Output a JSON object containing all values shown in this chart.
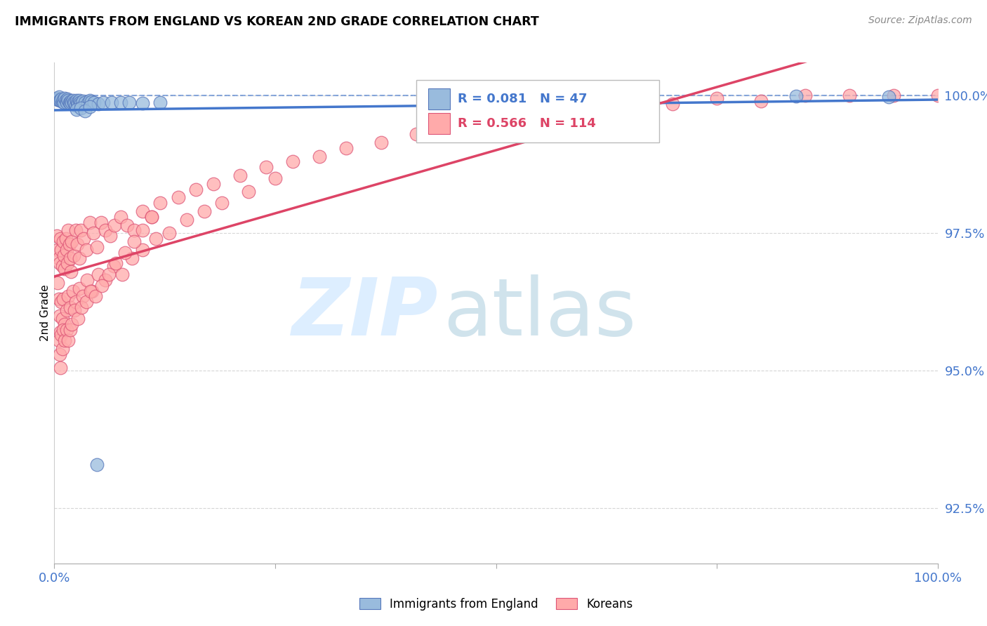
{
  "title": "IMMIGRANTS FROM ENGLAND VS KOREAN 2ND GRADE CORRELATION CHART",
  "source": "Source: ZipAtlas.com",
  "ylabel": "2nd Grade",
  "legend_label_blue": "Immigrants from England",
  "legend_label_pink": "Koreans",
  "R_blue": "0.081",
  "N_blue": "47",
  "R_pink": "0.566",
  "N_pink": "114",
  "xmin": 0.0,
  "xmax": 1.0,
  "ymin": 0.915,
  "ymax": 1.006,
  "yticks": [
    0.925,
    0.95,
    0.975,
    1.0
  ],
  "ytick_labels": [
    "92.5%",
    "95.0%",
    "97.5%",
    "100.0%"
  ],
  "color_blue": "#99BBDD",
  "color_pink": "#FFAAAA",
  "color_blue_edge": "#5577BB",
  "color_pink_edge": "#DD5577",
  "color_blue_line": "#4477CC",
  "color_pink_line": "#DD4466",
  "color_axis_text": "#4477CC",
  "blue_dots_x": [
    0.003,
    0.004,
    0.005,
    0.006,
    0.007,
    0.008,
    0.009,
    0.01,
    0.011,
    0.012,
    0.013,
    0.014,
    0.015,
    0.016,
    0.017,
    0.018,
    0.019,
    0.02,
    0.021,
    0.022,
    0.023,
    0.024,
    0.025,
    0.026,
    0.027,
    0.028,
    0.029,
    0.03,
    0.032,
    0.035,
    0.038,
    0.04,
    0.042,
    0.045,
    0.05,
    0.055,
    0.065,
    0.075,
    0.085,
    0.1,
    0.12,
    0.025,
    0.03,
    0.035,
    0.04,
    0.84,
    0.945
  ],
  "blue_dots_y": [
    0.9995,
    0.9993,
    0.9998,
    0.9992,
    0.9991,
    0.9994,
    0.9989,
    0.9993,
    0.9988,
    0.9995,
    0.9991,
    0.9988,
    0.9994,
    0.9991,
    0.9988,
    0.9986,
    0.999,
    0.9987,
    0.9991,
    0.9988,
    0.9986,
    0.9983,
    0.9991,
    0.9988,
    0.9985,
    0.9991,
    0.9988,
    0.9985,
    0.999,
    0.9988,
    0.9986,
    0.9991,
    0.9989,
    0.9987,
    0.9985,
    0.9988,
    0.9987,
    0.9988,
    0.9987,
    0.9986,
    0.9988,
    0.9975,
    0.9978,
    0.9972,
    0.998,
    0.9999,
    0.9998
  ],
  "blue_outlier_x": [
    0.048
  ],
  "blue_outlier_y": [
    0.933
  ],
  "pink_dots_x": [
    0.003,
    0.004,
    0.005,
    0.006,
    0.007,
    0.008,
    0.009,
    0.01,
    0.011,
    0.012,
    0.013,
    0.014,
    0.015,
    0.016,
    0.017,
    0.018,
    0.019,
    0.02,
    0.022,
    0.024,
    0.026,
    0.028,
    0.03,
    0.033,
    0.036,
    0.04,
    0.044,
    0.048,
    0.053,
    0.058,
    0.063,
    0.068,
    0.075,
    0.082,
    0.09,
    0.1,
    0.11,
    0.12,
    0.14,
    0.16,
    0.18,
    0.21,
    0.24,
    0.27,
    0.3,
    0.33,
    0.37,
    0.41,
    0.45,
    0.5,
    0.55,
    0.6,
    0.65,
    0.7,
    0.75,
    0.8,
    0.85,
    0.9,
    0.95,
    1.0,
    0.004,
    0.005,
    0.006,
    0.007,
    0.008,
    0.009,
    0.01,
    0.012,
    0.014,
    0.016,
    0.018,
    0.021,
    0.024,
    0.028,
    0.032,
    0.037,
    0.043,
    0.05,
    0.058,
    0.067,
    0.077,
    0.088,
    0.1,
    0.115,
    0.13,
    0.15,
    0.17,
    0.19,
    0.22,
    0.25,
    0.005,
    0.006,
    0.007,
    0.008,
    0.009,
    0.01,
    0.012,
    0.014,
    0.016,
    0.018,
    0.02,
    0.023,
    0.027,
    0.031,
    0.036,
    0.041,
    0.047,
    0.054,
    0.062,
    0.07,
    0.08,
    0.09,
    0.1,
    0.11
  ],
  "pink_dots_y": [
    0.9745,
    0.972,
    0.9705,
    0.9695,
    0.974,
    0.972,
    0.969,
    0.9735,
    0.971,
    0.9685,
    0.974,
    0.972,
    0.9695,
    0.9755,
    0.973,
    0.9705,
    0.968,
    0.9735,
    0.971,
    0.9755,
    0.973,
    0.9705,
    0.9755,
    0.974,
    0.972,
    0.977,
    0.975,
    0.9725,
    0.977,
    0.9755,
    0.9745,
    0.9765,
    0.978,
    0.9765,
    0.9755,
    0.979,
    0.978,
    0.9805,
    0.9815,
    0.983,
    0.984,
    0.9855,
    0.987,
    0.988,
    0.989,
    0.9905,
    0.9915,
    0.993,
    0.9945,
    0.996,
    0.9975,
    0.998,
    0.999,
    0.9985,
    0.9995,
    0.999,
    1.0,
    1.0,
    1.0,
    1.0,
    0.966,
    0.963,
    0.96,
    0.957,
    0.9625,
    0.9595,
    0.963,
    0.9585,
    0.961,
    0.9635,
    0.9615,
    0.9645,
    0.9625,
    0.965,
    0.9635,
    0.9665,
    0.9645,
    0.9675,
    0.9665,
    0.969,
    0.9675,
    0.9705,
    0.972,
    0.974,
    0.975,
    0.9775,
    0.979,
    0.9805,
    0.9825,
    0.985,
    0.9555,
    0.953,
    0.9505,
    0.9565,
    0.954,
    0.9575,
    0.9555,
    0.9575,
    0.9555,
    0.9575,
    0.9585,
    0.961,
    0.9595,
    0.9615,
    0.9625,
    0.9645,
    0.9635,
    0.9655,
    0.9675,
    0.9695,
    0.9715,
    0.9735,
    0.9755,
    0.978
  ]
}
